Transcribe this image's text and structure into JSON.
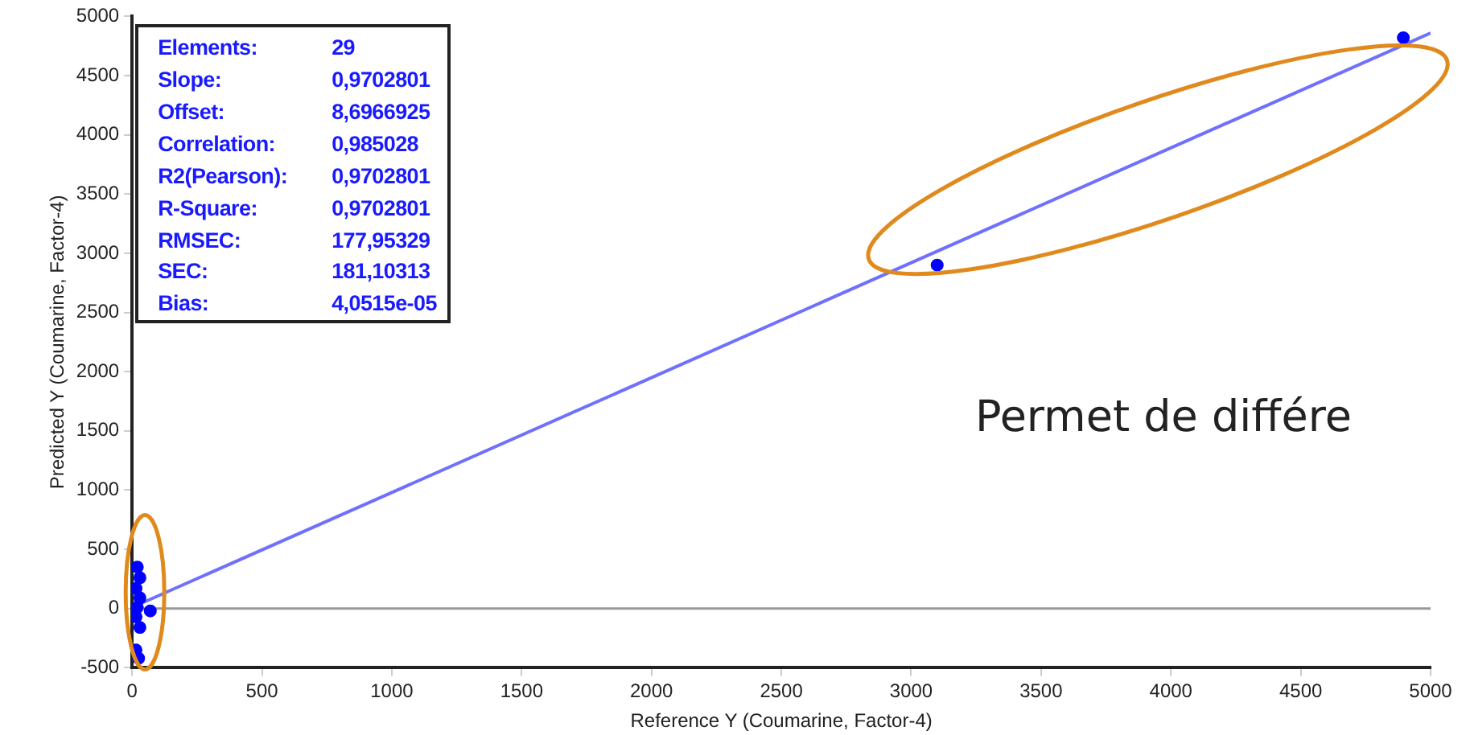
{
  "chart_data": {
    "type": "scatter",
    "xlabel": "Reference Y (Coumarine, Factor-4)",
    "ylabel": "Predicted Y (Coumarine, Factor-4)",
    "xlim": [
      0,
      5000
    ],
    "xticks": [
      0,
      500,
      1000,
      1500,
      2000,
      2500,
      3000,
      3500,
      4000,
      4500,
      5000
    ],
    "ylim": [
      -500,
      5000
    ],
    "yticks": [
      -500,
      0,
      500,
      1000,
      1500,
      2000,
      2500,
      3000,
      3500,
      4000,
      4500,
      5000
    ],
    "grid": false,
    "legend": false,
    "ref_lines": [
      {
        "axis": "y",
        "value": 0,
        "color": "#999999"
      }
    ],
    "series": [
      {
        "type": "scatter",
        "color": "#0000ff",
        "marker": "circle",
        "x": [
          20,
          30,
          15,
          30,
          20,
          70,
          15,
          30,
          15,
          25,
          3100,
          4895
        ],
        "values": [
          350,
          260,
          170,
          90,
          10,
          -20,
          -70,
          -160,
          -350,
          -420,
          2900,
          4820
        ]
      },
      {
        "type": "line",
        "color": "#7070ff",
        "x": [
          0,
          5000
        ],
        "values": [
          10,
          4860
        ]
      }
    ],
    "annotations": [
      "Elements:",
      "29",
      "Slope:",
      "0,9702801",
      "Offset:",
      "8,6966925",
      "Correlation:",
      "0,985028",
      "R2(Pearson):",
      "0,9702801",
      "R-Square:",
      "0,9702801",
      "RMSEC:",
      "177,95329",
      "SEC:",
      "181,10313",
      "Bias:",
      "4,0515e-05",
      "Permet de différe"
    ]
  }
}
